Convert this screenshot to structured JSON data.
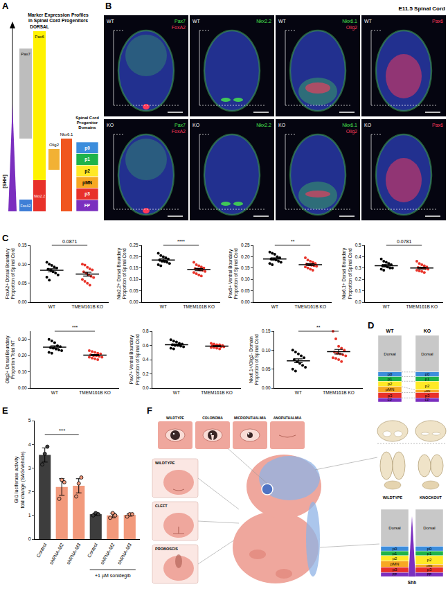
{
  "panel_labels": [
    "A",
    "B",
    "C",
    "D",
    "E",
    "F"
  ],
  "panel_a": {
    "title": "Marker Expression Profiles\nin Spinal Cord Progenitors",
    "dorsal": "DORSAL",
    "gradient": "[SHH]",
    "markers": [
      {
        "name": "Pax7",
        "color": "#bdbdbd"
      },
      {
        "name": "Pax6",
        "color": "#fff200"
      },
      {
        "name": "FoxA2",
        "color": "#3f7fd6"
      },
      {
        "name": "Nkx2.2",
        "color": "#e8312a"
      },
      {
        "name": "Olig2",
        "color": "#f2b134"
      },
      {
        "name": "Nkx6.1",
        "color": "#f0561f"
      }
    ],
    "domains_title": "Spinal Cord\nProgenitor\nDomains",
    "domains": [
      {
        "name": "p0",
        "color": "#3c8ddc"
      },
      {
        "name": "p1",
        "color": "#1fb34a"
      },
      {
        "name": "p2",
        "color": "#ffe926"
      },
      {
        "name": "pMN",
        "color": "#f7a823"
      },
      {
        "name": "p3",
        "color": "#e8312a"
      },
      {
        "name": "FP",
        "color": "#7b2fbf"
      }
    ]
  },
  "panel_b": {
    "title": "E11.5 Spinal Cord",
    "rows": [
      "WT",
      "KO"
    ],
    "stains": [
      {
        "green": "Pax7",
        "red": "FoxA2"
      },
      {
        "green": "Nkx2.2"
      },
      {
        "green": "Nkx6.1",
        "red": "Olig2"
      },
      {
        "red": "Pax6"
      }
    ]
  },
  "panel_d": {
    "columns": [
      {
        "label": "WT",
        "domains": [
          {
            "name": "Dorsal",
            "size": 0.55,
            "color": "#c8c8c8"
          },
          {
            "name": "p0",
            "size": 0.07,
            "color": "#3c8ddc"
          },
          {
            "name": "p1",
            "size": 0.07,
            "color": "#1fb34a"
          },
          {
            "name": "p2",
            "size": 0.08,
            "color": "#ffe926"
          },
          {
            "name": "pMN",
            "size": 0.09,
            "color": "#f7a823"
          },
          {
            "name": "p3",
            "size": 0.08,
            "color": "#e8312a"
          },
          {
            "name": "FP",
            "size": 0.06,
            "color": "#7b2fbf"
          }
        ]
      },
      {
        "label": "KO",
        "domains": [
          {
            "name": "Dorsal",
            "size": 0.55,
            "color": "#c8c8c8"
          },
          {
            "name": "p0",
            "size": 0.07,
            "color": "#3c8ddc"
          },
          {
            "name": "p1",
            "size": 0.07,
            "color": "#1fb34a"
          },
          {
            "name": "p2",
            "size": 0.13,
            "color": "#ffe926"
          },
          {
            "name": "pMN",
            "size": 0.04,
            "color": "#f7a823"
          },
          {
            "name": "p3",
            "size": 0.08,
            "color": "#e8312a"
          },
          {
            "name": "FP",
            "size": 0.06,
            "color": "#7b2fbf"
          }
        ]
      }
    ]
  },
  "panel_f": {
    "eye_labels": [
      "WILDTYPE",
      "COLOBOMA",
      "MICROPHTHALMIA",
      "ANOPHTHALMIA"
    ],
    "face_labels": [
      "WILDTYPE",
      "CLEFT",
      "PROBOSCIS"
    ],
    "brain_labels": [
      "WILDTYPE",
      "KNOCKOUT"
    ],
    "gradient": "Shh"
  },
  "chart_data": [
    {
      "type": "scatter",
      "ylabel": "FoxA2+ Dorsal Boundary\nProportion of Spinal Cord",
      "categories": [
        "WT",
        "TMEM161B KO"
      ],
      "points": [
        [
          0.105,
          0.1,
          0.097,
          0.093,
          0.09,
          0.087,
          0.084,
          0.08,
          0.077,
          0.072,
          0.066,
          0.058
        ],
        [
          0.1,
          0.098,
          0.092,
          0.088,
          0.085,
          0.08,
          0.076,
          0.072,
          0.068,
          0.065,
          0.06,
          0.055,
          0.05,
          0.045
        ]
      ],
      "mean": [
        0.084,
        0.074
      ],
      "error": [
        0.004,
        0.005
      ],
      "colors": [
        "#000000",
        "#e8342a"
      ],
      "ylim": [
        0,
        0.15
      ],
      "yticks": [
        {
          "value": 0,
          "label": "0.00"
        },
        {
          "value": 0.05,
          "label": "0.05"
        },
        {
          "value": 0.1,
          "label": "0.10"
        },
        {
          "value": 0.15,
          "label": "0.15"
        }
      ],
      "annotations": [
        {
          "text": "0.0871",
          "from": 0,
          "to": 1
        }
      ]
    },
    {
      "type": "scatter",
      "ylabel": "Nkx2.2+ Dorsal Boundary\nProportion of Spinal Cord",
      "categories": [
        "WT",
        "TMEM161B KO"
      ],
      "points": [
        [
          0.215,
          0.205,
          0.2,
          0.195,
          0.19,
          0.185,
          0.18,
          0.178,
          0.175,
          0.17,
          0.165,
          0.16
        ],
        [
          0.175,
          0.165,
          0.16,
          0.155,
          0.15,
          0.148,
          0.145,
          0.142,
          0.14,
          0.135,
          0.13,
          0.125,
          0.12,
          0.115
        ]
      ],
      "mean": [
        0.185,
        0.143
      ],
      "error": [
        0.005,
        0.005
      ],
      "colors": [
        "#000000",
        "#e8342a"
      ],
      "ylim": [
        0,
        0.25
      ],
      "yticks": [
        {
          "value": 0,
          "label": "0.00"
        },
        {
          "value": 0.05,
          "label": "0.05"
        },
        {
          "value": 0.1,
          "label": "0.10"
        },
        {
          "value": 0.15,
          "label": "0.15"
        },
        {
          "value": 0.2,
          "label": "0.20"
        },
        {
          "value": 0.25,
          "label": "0.25"
        }
      ],
      "annotations": [
        {
          "text": "****",
          "from": 0,
          "to": 1
        }
      ]
    },
    {
      "type": "scatter",
      "ylabel": "Pax6+ Ventral Boundary\nProportion of Spinal Cord",
      "categories": [
        "WT",
        "TMEM161B KO"
      ],
      "points": [
        [
          0.22,
          0.215,
          0.21,
          0.2,
          0.195,
          0.19,
          0.188,
          0.185,
          0.18,
          0.175,
          0.17,
          0.165
        ],
        [
          0.195,
          0.185,
          0.18,
          0.175,
          0.17,
          0.168,
          0.165,
          0.162,
          0.16,
          0.158,
          0.155,
          0.15,
          0.145,
          0.14
        ]
      ],
      "mean": [
        0.19,
        0.165
      ],
      "error": [
        0.005,
        0.004
      ],
      "colors": [
        "#000000",
        "#e8342a"
      ],
      "ylim": [
        0,
        0.25
      ],
      "yticks": [
        {
          "value": 0,
          "label": "0.00"
        },
        {
          "value": 0.05,
          "label": "0.05"
        },
        {
          "value": 0.1,
          "label": "0.10"
        },
        {
          "value": 0.15,
          "label": "0.15"
        },
        {
          "value": 0.2,
          "label": "0.20"
        },
        {
          "value": 0.25,
          "label": "0.25"
        }
      ],
      "annotations": [
        {
          "text": "**",
          "from": 0,
          "to": 1
        }
      ]
    },
    {
      "type": "scatter",
      "ylabel": "Nkx6.1+ Dorsal Boundary\nProportion of Spinal Cord",
      "categories": [
        "WT",
        "TMEM161B KO"
      ],
      "points": [
        [
          0.38,
          0.36,
          0.35,
          0.34,
          0.33,
          0.32,
          0.32,
          0.31,
          0.3,
          0.3,
          0.29,
          0.28
        ],
        [
          0.36,
          0.34,
          0.33,
          0.32,
          0.31,
          0.305,
          0.3,
          0.3,
          0.295,
          0.29,
          0.28,
          0.275,
          0.27,
          0.26
        ]
      ],
      "mean": [
        0.32,
        0.3
      ],
      "error": [
        0.01,
        0.008
      ],
      "colors": [
        "#000000",
        "#e8342a"
      ],
      "ylim": [
        0,
        0.5
      ],
      "yticks": [
        {
          "value": 0,
          "label": "0.0"
        },
        0.1,
        0.2,
        0.3,
        0.4,
        0.5
      ],
      "annotations": [
        {
          "text": "0.0781",
          "from": 0,
          "to": 1
        }
      ]
    },
    {
      "type": "scatter",
      "ylabel": "Olig2+ Dorsal Boundary\nProportion Total NT",
      "categories": [
        "WT",
        "TMEM161B KO"
      ],
      "points": [
        [
          0.3,
          0.29,
          0.28,
          0.26,
          0.255,
          0.25,
          0.245,
          0.24,
          0.235,
          0.23,
          0.22,
          0.215
        ],
        [
          0.23,
          0.225,
          0.22,
          0.215,
          0.21,
          0.205,
          0.2,
          0.2,
          0.195,
          0.19,
          0.19,
          0.185,
          0.18,
          0.175
        ]
      ],
      "mean": [
        0.252,
        0.203
      ],
      "error": [
        0.008,
        0.004
      ],
      "colors": [
        "#000000",
        "#e8342a"
      ],
      "ylim": [
        0,
        0.35
      ],
      "yticks": [
        {
          "value": 0,
          "label": "0.00"
        },
        {
          "value": 0.1,
          "label": "0.10"
        },
        {
          "value": 0.2,
          "label": "0.20"
        },
        {
          "value": 0.3,
          "label": "0.30"
        }
      ],
      "annotations": [
        {
          "text": "***",
          "from": 0,
          "to": 1
        }
      ]
    },
    {
      "type": "scatter",
      "ylabel": "Pax7+ Ventral Boundary\nProportion of Spinal Cord",
      "categories": [
        "WT",
        "TMEM161B KO"
      ],
      "points": [
        [
          0.68,
          0.66,
          0.65,
          0.63,
          0.62,
          0.61,
          0.6,
          0.6,
          0.59,
          0.58,
          0.56,
          0.55
        ],
        [
          0.63,
          0.62,
          0.61,
          0.61,
          0.6,
          0.6,
          0.59,
          0.59,
          0.58,
          0.58,
          0.57,
          0.57,
          0.56,
          0.55
        ]
      ],
      "mean": [
        0.61,
        0.59
      ],
      "error": [
        0.012,
        0.007
      ],
      "colors": [
        "#000000",
        "#e8342a"
      ],
      "ylim": [
        0,
        0.8
      ],
      "yticks": [
        {
          "value": 0,
          "label": "0.0"
        },
        0.2,
        0.4,
        0.6,
        0.8
      ]
    },
    {
      "type": "scatter",
      "ylabel": "Nkx6.1+/Olig2- Domain\nProportion of Spinal Cord",
      "categories": [
        "WT",
        "TMEM161B KO"
      ],
      "points": [
        [
          0.1,
          0.095,
          0.09,
          0.085,
          0.08,
          0.075,
          0.07,
          0.065,
          0.06,
          0.055,
          0.05,
          0.045
        ],
        [
          0.15,
          0.13,
          0.11,
          0.105,
          0.1,
          0.095,
          0.092,
          0.09,
          0.088,
          0.085,
          0.08,
          0.078,
          0.075,
          0.07
        ]
      ],
      "mean": [
        0.072,
        0.096
      ],
      "error": [
        0.005,
        0.006
      ],
      "colors": [
        "#000000",
        "#e8342a"
      ],
      "ylim": [
        0,
        0.15
      ],
      "yticks": [
        {
          "value": 0,
          "label": "0.00"
        },
        {
          "value": 0.05,
          "label": "0.05"
        },
        {
          "value": 0.1,
          "label": "0.10"
        },
        {
          "value": 0.15,
          "label": "0.15"
        }
      ],
      "annotations": [
        {
          "text": "**",
          "from": 0,
          "to": 1
        }
      ]
    },
    {
      "type": "bar",
      "ylabel": "Gli1 luciferase activity\nfold change (SAG/Vehicle)",
      "categories": [
        "Control",
        "shRNA-M2",
        "shRNA-M3",
        "Control",
        "shRNA-M2",
        "shRNA-M3"
      ],
      "values": [
        3.55,
        2.2,
        2.25,
        1.05,
        1.0,
        1.02
      ],
      "error": [
        0.3,
        0.35,
        0.3,
        0.05,
        0.1,
        0.05
      ],
      "points": [
        [
          3.15,
          3.6,
          3.9
        ],
        [
          1.7,
          2.5,
          2.4
        ],
        [
          1.8,
          2.35,
          2.6
        ],
        [
          1.0,
          1.1,
          1.05
        ],
        [
          0.9,
          1.1,
          1.0
        ],
        [
          0.95,
          1.05,
          1.05
        ]
      ],
      "colors": [
        "#3d3d3d",
        "#f29a7c",
        "#f29a7c",
        "#3d3d3d",
        "#f29a7c",
        "#f29a7c"
      ],
      "ylim": [
        0,
        5
      ],
      "yticks": [
        0,
        1,
        2,
        3,
        4,
        5
      ],
      "annotations": [
        {
          "text": "***",
          "from": 0,
          "to": 2
        }
      ],
      "xgroups": [
        {
          "label": "+1 µM sonidegib",
          "from": 3,
          "to": 5
        }
      ]
    }
  ]
}
